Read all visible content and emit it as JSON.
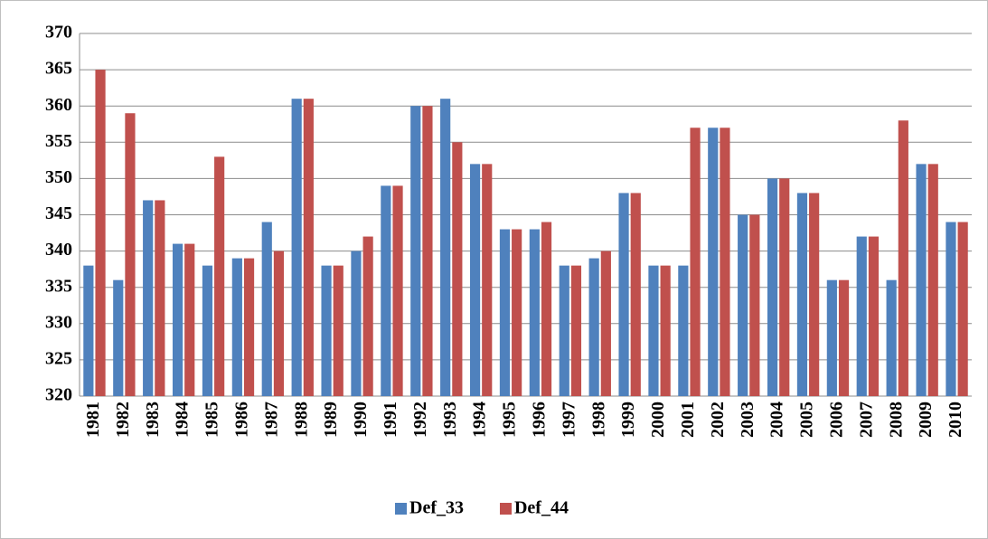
{
  "chart_data": {
    "type": "bar",
    "categories": [
      "1981",
      "1982",
      "1983",
      "1984",
      "1985",
      "1986",
      "1987",
      "1988",
      "1989",
      "1990",
      "1991",
      "1992",
      "1993",
      "1994",
      "1995",
      "1996",
      "1997",
      "1998",
      "1999",
      "2000",
      "2001",
      "2002",
      "2003",
      "2004",
      "2005",
      "2006",
      "2007",
      "2008",
      "2009",
      "2010"
    ],
    "series": [
      {
        "name": "Def_33",
        "color": "#4f81bd",
        "values": [
          338,
          336,
          347,
          341,
          338,
          339,
          344,
          361,
          338,
          340,
          349,
          360,
          361,
          352,
          343,
          343,
          338,
          339,
          348,
          338,
          338,
          357,
          345,
          350,
          348,
          336,
          342,
          336,
          352,
          344
        ]
      },
      {
        "name": "Def_44",
        "color": "#c0504d",
        "values": [
          365,
          359,
          347,
          341,
          353,
          339,
          340,
          361,
          338,
          342,
          349,
          360,
          355,
          352,
          343,
          344,
          338,
          340,
          348,
          338,
          357,
          357,
          345,
          350,
          348,
          336,
          342,
          358,
          352,
          344
        ]
      }
    ],
    "ylim": [
      320,
      370
    ],
    "yticks": [
      320,
      325,
      330,
      335,
      340,
      345,
      350,
      355,
      360,
      365,
      370
    ],
    "grid": true,
    "legend": "bottom"
  }
}
